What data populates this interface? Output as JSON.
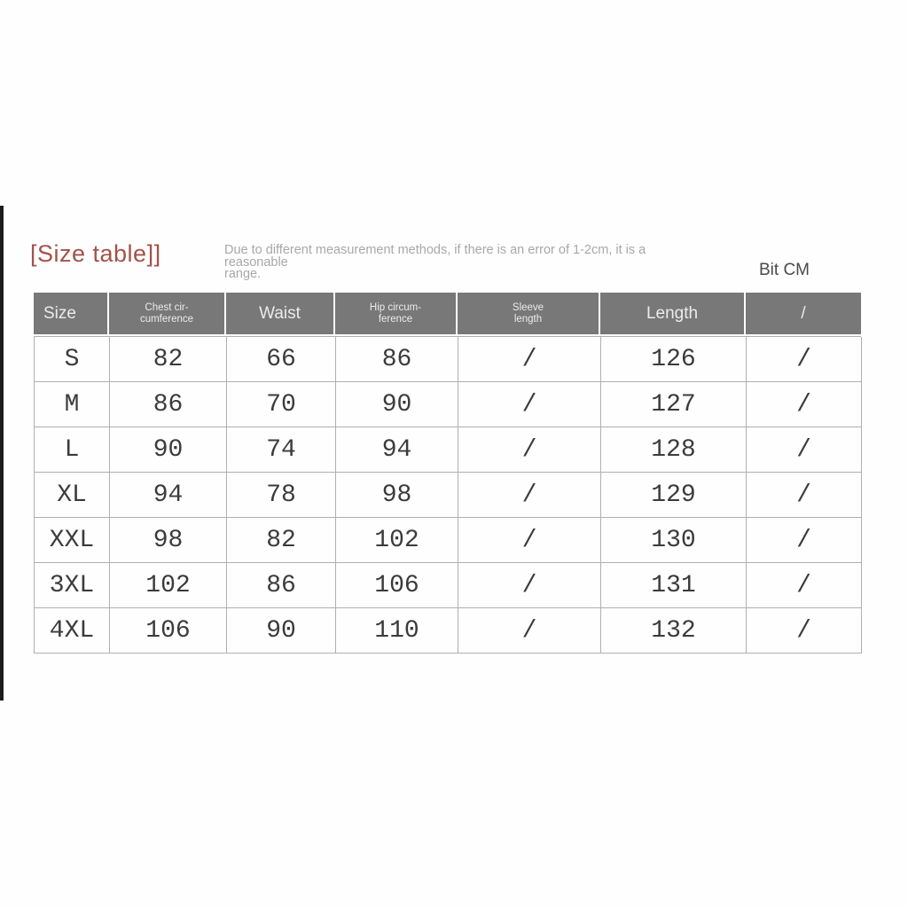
{
  "page": {
    "title": "[Size table]]",
    "note_line1": "Due to different measurement methods, if there is an error of 1-2cm, it is a reasonable",
    "note_line2": "range.",
    "unit_label": "Bit CM"
  },
  "colors": {
    "title_text": "#a3524a",
    "note_text": "#a8a8a8",
    "unit_text": "#4a4a4a",
    "header_bg": "#787878",
    "header_text": "#ececec",
    "grid_line": "#b0b0b0",
    "cell_text": "#3b3b3b",
    "left_strip": "#1c1c1c"
  },
  "table": {
    "headers": [
      {
        "label": "Size",
        "small": false
      },
      {
        "label": "Chest cir-\ncumference",
        "small": true
      },
      {
        "label": "Waist",
        "small": false
      },
      {
        "label": "Hip circum-\nference",
        "small": true
      },
      {
        "label": "Sleeve\nlength",
        "small": true
      },
      {
        "label": "Length",
        "small": false
      },
      {
        "label": "/",
        "small": false
      }
    ],
    "rows": [
      [
        "S",
        "82",
        "66",
        "86",
        "/",
        "126",
        "/"
      ],
      [
        "M",
        "86",
        "70",
        "90",
        "/",
        "127",
        "/"
      ],
      [
        "L",
        "90",
        "74",
        "94",
        "/",
        "128",
        "/"
      ],
      [
        "XL",
        "94",
        "78",
        "98",
        "/",
        "129",
        "/"
      ],
      [
        "XXL",
        "98",
        "82",
        "102",
        "/",
        "130",
        "/"
      ],
      [
        "3XL",
        "102",
        "86",
        "106",
        "/",
        "131",
        "/"
      ],
      [
        "4XL",
        "106",
        "90",
        "110",
        "/",
        "132",
        "/"
      ]
    ]
  }
}
